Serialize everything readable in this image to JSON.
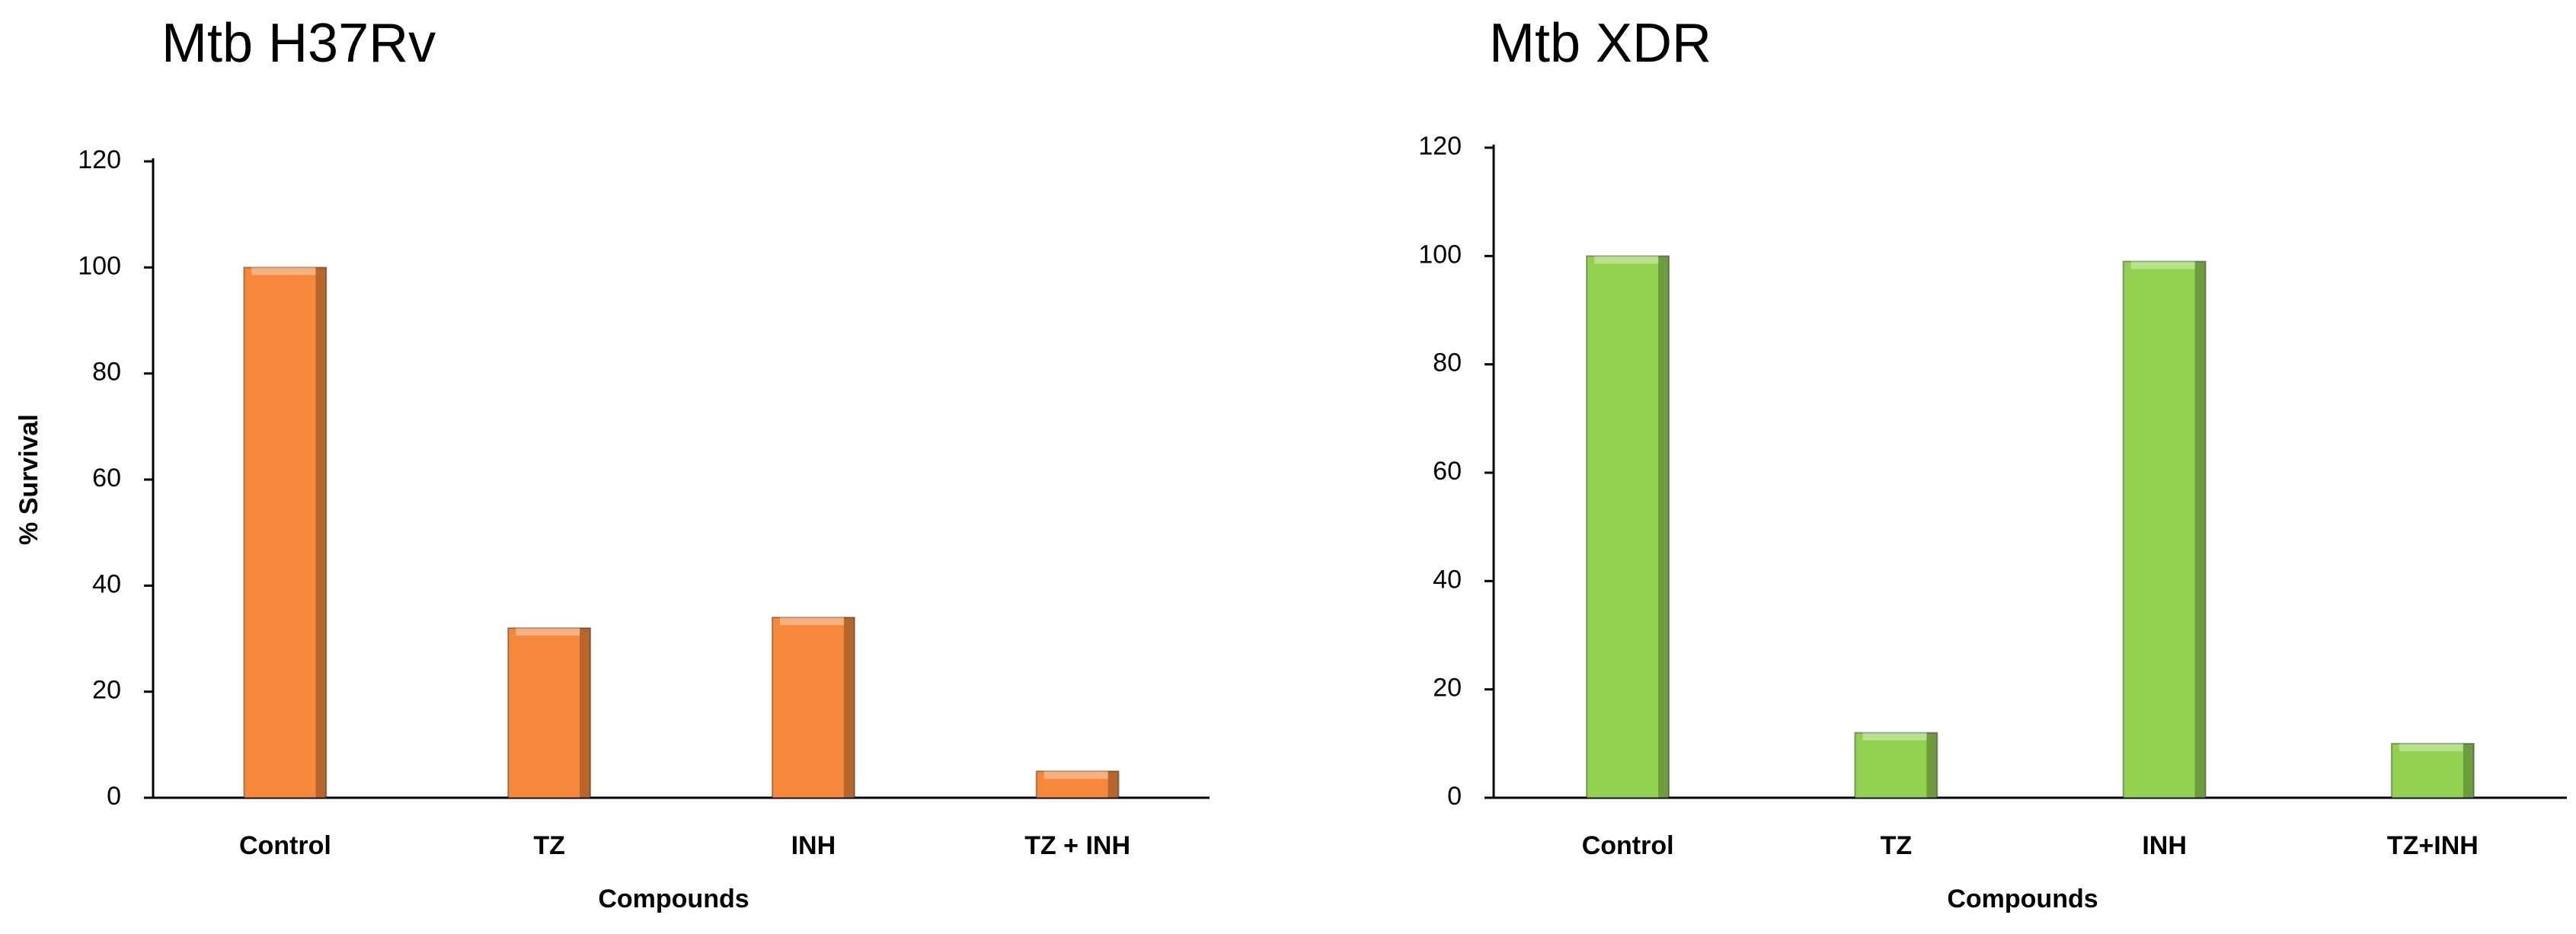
{
  "chart_data": [
    {
      "type": "bar",
      "title": "Mtb H37Rv",
      "y_label": "% Survival",
      "x_label": "Compounds",
      "categories": [
        "Control",
        "TZ",
        "INH",
        "TZ + INH"
      ],
      "values": [
        100,
        32,
        34,
        5
      ],
      "color": "#f5883a",
      "ylim": [
        0,
        120
      ],
      "yticks": [
        0,
        20,
        40,
        60,
        80,
        100,
        120
      ]
    },
    {
      "type": "bar",
      "title": "Mtb  XDR",
      "x_label": "Compounds",
      "categories": [
        "Control",
        "TZ",
        "INH",
        "TZ+INH"
      ],
      "values": [
        100,
        12,
        99,
        10
      ],
      "color": "#92d050",
      "ylim": [
        0,
        120
      ],
      "yticks": [
        0,
        20,
        40,
        60,
        80,
        100,
        120
      ]
    }
  ]
}
